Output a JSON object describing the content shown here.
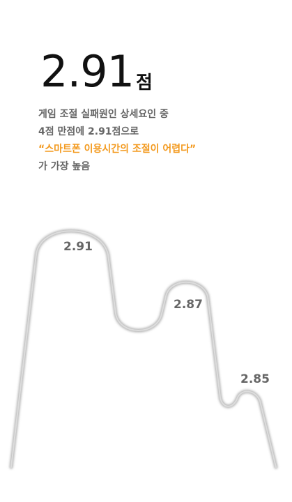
{
  "headline": {
    "score": "2.91",
    "unit": "점"
  },
  "description": {
    "line1": "게임 조절 실패원인 상세요인 중",
    "line2": "4점 만점에 2.91점으로",
    "highlight": "“스마트폰 이용시간의 조절이 어렵다”",
    "line4": "가 가장 높음"
  },
  "chart_data": {
    "type": "area",
    "title": "",
    "xlabel": "",
    "ylabel": "",
    "series": [
      {
        "values": [
          2.91,
          2.87,
          2.85
        ]
      }
    ],
    "data_labels": [
      "2.91",
      "2.87",
      "2.85"
    ],
    "color": "#c8c8c8"
  }
}
